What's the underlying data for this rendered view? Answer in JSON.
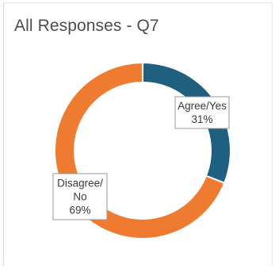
{
  "chart_data": {
    "type": "pie",
    "variant": "doughnut",
    "title": "All Responses - Q7",
    "categories": [
      "Agree/Yes",
      "Disagree/ No"
    ],
    "values": [
      31,
      69
    ],
    "value_labels": [
      "31%",
      "69%"
    ],
    "colors": [
      "#1f5f80",
      "#ee7b30"
    ],
    "legend": "none"
  }
}
